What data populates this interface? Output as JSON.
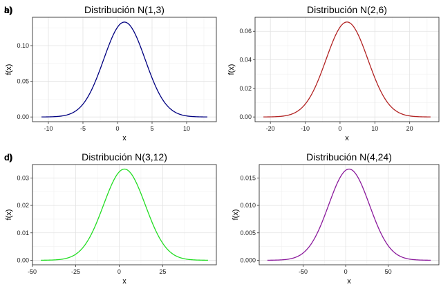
{
  "chart_data": [
    {
      "type": "line",
      "tag": "a)",
      "title": "Distribución N(1,3)",
      "xlabel": "x",
      "ylabel": "f(x)",
      "mean": 1,
      "sd": 3,
      "x_range": [
        -11,
        13
      ],
      "xlim": [
        -12.3,
        14.3
      ],
      "ylim": [
        -0.0066,
        0.1397
      ],
      "xticks": [
        -10,
        -5,
        0,
        5,
        10
      ],
      "xtick_labels": [
        "-10",
        "-5",
        "0",
        "5",
        "10"
      ],
      "yticks": [
        0,
        0.05,
        0.1
      ],
      "ytick_labels": [
        "0.00",
        "0.05",
        "0.10"
      ],
      "color": "#000080",
      "grid": true,
      "legend": "none"
    },
    {
      "type": "line",
      "tag": "b)",
      "title": "Distribución N(2,6)",
      "xlabel": "x",
      "ylabel": "f(x)",
      "mean": 2,
      "sd": 6,
      "x_range": [
        -22,
        26
      ],
      "xlim": [
        -24.4,
        28.4
      ],
      "ylim": [
        -0.0033,
        0.0698
      ],
      "xticks": [
        -20,
        -10,
        0,
        10,
        20
      ],
      "xtick_labels": [
        "-20",
        "-10",
        "0",
        "10",
        "20"
      ],
      "yticks": [
        0,
        0.02,
        0.04,
        0.06
      ],
      "ytick_labels": [
        "0.00",
        "0.02",
        "0.04",
        "0.06"
      ],
      "color": "#b22222",
      "grid": true,
      "legend": "none"
    },
    {
      "type": "line",
      "tag": "c)",
      "title": "Distribución N(3,12)",
      "xlabel": "x",
      "ylabel": "f(x)",
      "mean": 3,
      "sd": 12,
      "x_range": [
        -45,
        51
      ],
      "xlim": [
        -49.8,
        55.8
      ],
      "ylim": [
        -0.00166,
        0.0349
      ],
      "xticks": [
        -50,
        -25,
        0,
        25
      ],
      "xtick_labels": [
        "-50",
        "-25",
        "0",
        "25"
      ],
      "yticks": [
        0,
        0.01,
        0.02,
        0.03
      ],
      "ytick_labels": [
        "0.00",
        "0.01",
        "0.02",
        "0.03"
      ],
      "color": "#22dd22",
      "grid": true,
      "legend": "none"
    },
    {
      "type": "line",
      "tag": "d)",
      "title": "Distribución N(4,24)",
      "xlabel": "x",
      "ylabel": "f(x)",
      "mean": 4,
      "sd": 24,
      "x_range": [
        -92,
        100
      ],
      "xlim": [
        -101.6,
        109.6
      ],
      "ylim": [
        -0.00083,
        0.01745
      ],
      "xticks": [
        -50,
        0,
        50
      ],
      "xtick_labels": [
        "-50",
        "0",
        "50"
      ],
      "yticks": [
        0,
        0.005,
        0.01,
        0.015
      ],
      "ytick_labels": [
        "0.000",
        "0.005",
        "0.010",
        "0.015"
      ],
      "color": "#8b1a9c",
      "grid": true,
      "legend": "none"
    }
  ]
}
